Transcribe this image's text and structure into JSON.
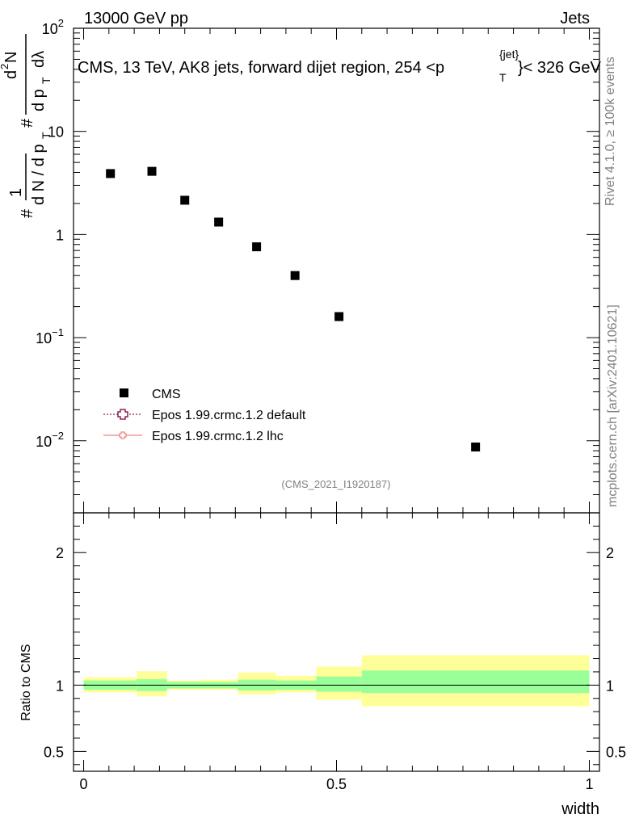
{
  "header": {
    "process": "13000 GeV pp",
    "category": "Jets"
  },
  "plot_title": {
    "prefix": "CMS, 13 TeV, AK8 jets, forward dijet region, 254 <p",
    "sup": "{jet}",
    "sub": "T",
    "suffix": "}< 326 GeV"
  },
  "y_axis_label": {
    "hash1": "#",
    "one": "1",
    "dNdpT": "d N / d p",
    "T1": "T",
    "hash2": "#",
    "d2N": "d",
    "two": "2",
    "N": "N",
    "dpT": "d p",
    "T2": "T",
    "dlambda": "dλ"
  },
  "side_text": {
    "rivet": "Rivet 4.1.0, ≥ 100k events",
    "mcplots": "mcplots.cern.ch [arXiv:2401.10621]"
  },
  "analysis_id": "(CMS_2021_I1920187)",
  "legend": {
    "cms": "CMS",
    "epos_default": "Epos 1.99.crmc.1.2 default",
    "epos_lhc": "Epos 1.99.crmc.1.2 lhc"
  },
  "ratio_label": "Ratio to CMS",
  "x_axis_label": "width",
  "chart_data": [
    {
      "type": "scatter",
      "panel": "main",
      "yscale": "log",
      "xlim": [
        -0.02,
        1.02
      ],
      "ylim": [
        0.002,
        100
      ],
      "ylabel": "1/(dN/dp_T) d²N/(dp_T dλ)",
      "y_ticks": [
        {
          "base": "10",
          "exp": "−2",
          "value": 0.01
        },
        {
          "base": "10",
          "exp": "−1",
          "value": 0.1
        },
        {
          "label": "1",
          "value": 1
        },
        {
          "label": "10",
          "value": 10
        },
        {
          "base": "10",
          "exp": "2",
          "value": 100
        }
      ],
      "series": [
        {
          "name": "CMS",
          "x": [
            0.053,
            0.135,
            0.2,
            0.267,
            0.342,
            0.418,
            0.505,
            0.775
          ],
          "y": [
            3.9,
            4.1,
            2.15,
            1.32,
            0.76,
            0.4,
            0.16,
            0.0087
          ]
        }
      ]
    },
    {
      "type": "area",
      "panel": "ratio",
      "xlim": [
        -0.02,
        1.02
      ],
      "ylim": [
        0.35,
        2.3
      ],
      "ylabel": "Ratio to CMS",
      "xlabel": "width",
      "x_ticks": [
        "0",
        "0.5",
        "1"
      ],
      "y_ticks": [
        {
          "label": "0.5",
          "value": 0.5
        },
        {
          "label": "1",
          "value": 1
        },
        {
          "label": "2",
          "value": 2
        }
      ],
      "bands": [
        {
          "x0": 0.0,
          "x1": 0.105,
          "green": [
            0.965,
            1.035
          ],
          "yellow": [
            0.945,
            1.06
          ]
        },
        {
          "x0": 0.105,
          "x1": 0.165,
          "green": [
            0.955,
            1.045
          ],
          "yellow": [
            0.915,
            1.105
          ]
        },
        {
          "x0": 0.165,
          "x1": 0.23,
          "green": [
            0.975,
            1.025
          ],
          "yellow": [
            0.965,
            1.035
          ]
        },
        {
          "x0": 0.23,
          "x1": 0.305,
          "green": [
            0.975,
            1.025
          ],
          "yellow": [
            0.965,
            1.04
          ]
        },
        {
          "x0": 0.305,
          "x1": 0.38,
          "green": [
            0.96,
            1.04
          ],
          "yellow": [
            0.93,
            1.095
          ]
        },
        {
          "x0": 0.38,
          "x1": 0.46,
          "green": [
            0.965,
            1.035
          ],
          "yellow": [
            0.945,
            1.07
          ]
        },
        {
          "x0": 0.46,
          "x1": 0.55,
          "green": [
            0.95,
            1.065
          ],
          "yellow": [
            0.89,
            1.14
          ]
        },
        {
          "x0": 0.55,
          "x1": 1.0,
          "green": [
            0.94,
            1.11
          ],
          "yellow": [
            0.84,
            1.225
          ]
        }
      ],
      "reference_line": 1
    }
  ],
  "colors": {
    "green_band": "#99ff99",
    "yellow_band": "#ffff99",
    "epos_default": "#8b2252",
    "epos_lhc": "#f08080",
    "side_text": "#808080"
  }
}
